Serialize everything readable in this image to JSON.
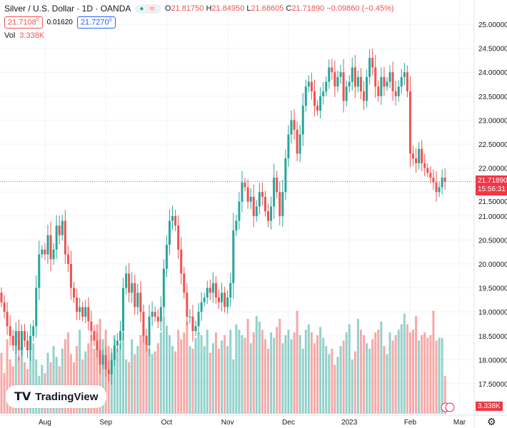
{
  "header": {
    "symbol": "Silver / U.S. Dollar · 1D · OANDA",
    "o_label": "O",
    "o": "21.81750",
    "h_label": "H",
    "h": "21.84950",
    "l_label": "L",
    "l": "21.68605",
    "c_label": "C",
    "c": "21.71890",
    "change": "−0.09860 (−0.45%)",
    "bid": "21.7108",
    "bid_sup": "0",
    "spread": "0.01620",
    "ask": "21.7270",
    "ask_sup": "0",
    "vol_label": "Vol",
    "vol": "3.338K"
  },
  "price_tag": {
    "price": "21.71890",
    "countdown": "15:56:31"
  },
  "volume_tag": "3.338K",
  "logo": "TradingView",
  "colors": {
    "up": "#26a69a",
    "down": "#ef5350"
  },
  "chart_data": {
    "type": "candlestick",
    "ylim": [
      17.25,
      25.5
    ],
    "y_ticks": [
      "25.00000",
      "24.50000",
      "24.00000",
      "23.50000",
      "23.00000",
      "22.50000",
      "22.00000",
      "21.50000",
      "21.00000",
      "20.50000",
      "20.00000",
      "19.50000",
      "19.00000",
      "18.50000",
      "18.00000",
      "17.50000"
    ],
    "x_ticks": [
      {
        "label": "Aug",
        "index": 15
      },
      {
        "label": "Sep",
        "index": 36
      },
      {
        "label": "Oct",
        "index": 57
      },
      {
        "label": "Nov",
        "index": 78
      },
      {
        "label": "Dec",
        "index": 99
      },
      {
        "label": "2023",
        "index": 120
      },
      {
        "label": "Feb",
        "index": 141
      },
      {
        "label": "Mar",
        "index": 158
      }
    ],
    "closes": [
      19.2,
      19.0,
      18.7,
      18.5,
      18.3,
      18.6,
      18.2,
      18.6,
      18.4,
      18.2,
      18.5,
      18.7,
      19.5,
      20.2,
      20.3,
      20.2,
      20.6,
      20.1,
      20.3,
      20.8,
      20.6,
      20.9,
      20.2,
      20.0,
      19.5,
      19.3,
      19.0,
      19.1,
      18.9,
      19.1,
      18.8,
      18.6,
      18.4,
      18.2,
      17.9,
      18.1,
      17.8,
      17.7,
      18.0,
      18.3,
      18.4,
      18.6,
      19.5,
      19.8,
      19.4,
      19.6,
      19.1,
      19.4,
      19.0,
      18.5,
      18.3,
      18.9,
      19.0,
      18.9,
      18.8,
      19.1,
      19.9,
      20.4,
      20.9,
      21.0,
      20.8,
      20.3,
      19.8,
      19.4,
      18.9,
      18.9,
      18.6,
      18.7,
      19.0,
      19.2,
      19.3,
      19.5,
      19.4,
      19.6,
      19.3,
      19.2,
      19.4,
      19.1,
      19.3,
      19.6,
      20.7,
      20.9,
      21.3,
      21.7,
      21.6,
      21.3,
      21.4,
      21.0,
      21.2,
      21.5,
      21.4,
      21.1,
      20.9,
      21.2,
      21.8,
      21.5,
      21.0,
      21.5,
      22.2,
      22.7,
      23.0,
      22.8,
      22.3,
      22.7,
      23.3,
      23.7,
      23.8,
      23.6,
      23.3,
      23.2,
      23.5,
      23.6,
      23.8,
      24.1,
      24.0,
      23.7,
      23.9,
      24.0,
      23.4,
      23.7,
      23.8,
      24.1,
      23.7,
      23.9,
      23.6,
      23.4,
      23.9,
      24.3,
      24.1,
      23.7,
      23.5,
      23.9,
      23.7,
      23.8,
      24.0,
      23.6,
      23.5,
      23.7,
      23.9,
      24.0,
      23.6,
      22.3,
      22.2,
      22.1,
      22.4,
      22.1,
      22.0,
      21.9,
      21.8,
      21.7,
      21.5,
      21.6,
      21.8,
      21.72
    ],
    "first_open": 19.4,
    "volume": [
      45,
      30,
      55,
      40,
      35,
      60,
      42,
      50,
      38,
      33,
      47,
      52,
      40,
      28,
      36,
      30,
      45,
      38,
      50,
      42,
      35,
      48,
      55,
      60,
      44,
      38,
      50,
      62,
      40,
      46,
      52,
      58,
      48,
      66,
      70,
      55,
      62,
      50,
      45,
      58,
      48,
      52,
      60,
      40,
      38,
      55,
      44,
      50,
      58,
      62,
      50,
      48,
      44,
      46,
      52,
      60,
      72,
      65,
      58,
      50,
      46,
      62,
      55,
      60,
      68,
      50,
      48,
      56,
      60,
      58,
      50,
      62,
      45,
      52,
      60,
      48,
      54,
      58,
      50,
      62,
      40,
      66,
      62,
      58,
      56,
      70,
      52,
      60,
      72,
      68,
      62,
      55,
      48,
      60,
      56,
      64,
      70,
      52,
      58,
      62,
      55,
      60,
      76,
      58,
      48,
      62,
      66,
      60,
      52,
      58,
      64,
      56,
      50,
      44,
      48,
      36,
      42,
      50,
      54,
      60,
      66,
      40,
      46,
      70,
      62,
      58,
      52,
      48,
      55,
      60,
      62,
      68,
      50,
      44,
      60,
      54,
      58,
      62,
      66,
      74,
      66,
      60,
      62,
      72,
      54,
      58,
      60,
      56,
      58,
      76,
      54,
      56,
      56,
      28
    ]
  }
}
